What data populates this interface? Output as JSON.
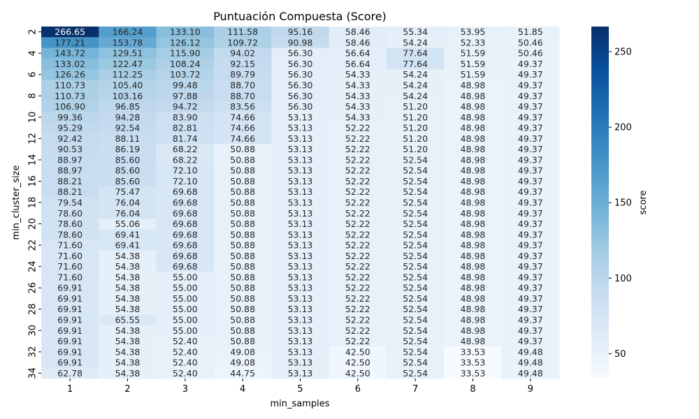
{
  "chart_data": {
    "type": "heatmap",
    "title": "Puntuación Compuesta (Score)",
    "xlabel": "min_samples",
    "ylabel": "min_cluster_size",
    "colorbar_label": "score",
    "x": [
      1,
      2,
      3,
      4,
      5,
      6,
      7,
      8,
      9
    ],
    "y": [
      2,
      3,
      4,
      5,
      6,
      7,
      8,
      9,
      10,
      11,
      12,
      13,
      14,
      15,
      16,
      17,
      18,
      19,
      20,
      21,
      22,
      23,
      24,
      25,
      26,
      27,
      28,
      29,
      30,
      31,
      32,
      33,
      34
    ],
    "y_tick_labels": [
      "2",
      "4",
      "6",
      "8",
      "10",
      "12",
      "14",
      "16",
      "18",
      "20",
      "22",
      "24",
      "26",
      "28",
      "30",
      "32",
      "34"
    ],
    "values": [
      [
        266.65,
        166.24,
        133.1,
        111.58,
        95.16,
        58.46,
        55.34,
        53.95,
        51.85
      ],
      [
        177.21,
        153.78,
        126.12,
        109.72,
        90.98,
        58.46,
        54.24,
        52.33,
        50.46
      ],
      [
        143.72,
        129.51,
        115.9,
        94.02,
        56.3,
        56.64,
        77.64,
        51.59,
        50.46
      ],
      [
        133.02,
        122.47,
        108.24,
        92.15,
        56.3,
        56.64,
        77.64,
        51.59,
        49.37
      ],
      [
        126.26,
        112.25,
        103.72,
        89.79,
        56.3,
        54.33,
        54.24,
        51.59,
        49.37
      ],
      [
        110.73,
        105.4,
        99.48,
        88.7,
        56.3,
        54.33,
        54.24,
        48.98,
        49.37
      ],
      [
        110.73,
        103.16,
        97.88,
        88.7,
        56.3,
        54.33,
        54.24,
        48.98,
        49.37
      ],
      [
        106.9,
        96.85,
        94.72,
        83.56,
        56.3,
        54.33,
        51.2,
        48.98,
        49.37
      ],
      [
        99.36,
        94.28,
        83.9,
        74.66,
        53.13,
        54.33,
        51.2,
        48.98,
        49.37
      ],
      [
        95.29,
        92.54,
        82.81,
        74.66,
        53.13,
        52.22,
        51.2,
        48.98,
        49.37
      ],
      [
        92.42,
        88.11,
        81.74,
        74.66,
        53.13,
        52.22,
        51.2,
        48.98,
        49.37
      ],
      [
        90.53,
        86.19,
        68.22,
        50.88,
        53.13,
        52.22,
        51.2,
        48.98,
        49.37
      ],
      [
        88.97,
        85.6,
        68.22,
        50.88,
        53.13,
        52.22,
        52.54,
        48.98,
        49.37
      ],
      [
        88.97,
        85.6,
        72.1,
        50.88,
        53.13,
        52.22,
        52.54,
        48.98,
        49.37
      ],
      [
        88.21,
        85.6,
        72.1,
        50.88,
        53.13,
        52.22,
        52.54,
        48.98,
        49.37
      ],
      [
        88.21,
        75.47,
        69.68,
        50.88,
        53.13,
        52.22,
        52.54,
        48.98,
        49.37
      ],
      [
        79.54,
        76.04,
        69.68,
        50.88,
        53.13,
        52.22,
        52.54,
        48.98,
        49.37
      ],
      [
        78.6,
        76.04,
        69.68,
        50.88,
        53.13,
        52.22,
        52.54,
        48.98,
        49.37
      ],
      [
        78.6,
        55.06,
        69.68,
        50.88,
        53.13,
        52.22,
        52.54,
        48.98,
        49.37
      ],
      [
        78.6,
        69.41,
        69.68,
        50.88,
        53.13,
        52.22,
        52.54,
        48.98,
        49.37
      ],
      [
        71.6,
        69.41,
        69.68,
        50.88,
        53.13,
        52.22,
        52.54,
        48.98,
        49.37
      ],
      [
        71.6,
        54.38,
        69.68,
        50.88,
        53.13,
        52.22,
        52.54,
        48.98,
        49.37
      ],
      [
        71.6,
        54.38,
        69.68,
        50.88,
        53.13,
        52.22,
        52.54,
        48.98,
        49.37
      ],
      [
        71.6,
        54.38,
        55.0,
        50.88,
        53.13,
        52.22,
        52.54,
        48.98,
        49.37
      ],
      [
        69.91,
        54.38,
        55.0,
        50.88,
        53.13,
        52.22,
        52.54,
        48.98,
        49.37
      ],
      [
        69.91,
        54.38,
        55.0,
        50.88,
        53.13,
        52.22,
        52.54,
        48.98,
        49.37
      ],
      [
        69.91,
        54.38,
        55.0,
        50.88,
        53.13,
        52.22,
        52.54,
        48.98,
        49.37
      ],
      [
        69.91,
        65.55,
        55.0,
        50.88,
        53.13,
        52.22,
        52.54,
        48.98,
        49.37
      ],
      [
        69.91,
        54.38,
        55.0,
        50.88,
        53.13,
        52.22,
        52.54,
        48.98,
        49.37
      ],
      [
        69.91,
        54.38,
        52.4,
        50.88,
        53.13,
        52.22,
        52.54,
        48.98,
        49.37
      ],
      [
        69.91,
        54.38,
        52.4,
        49.08,
        53.13,
        42.5,
        52.54,
        33.53,
        49.48
      ],
      [
        69.91,
        54.38,
        52.4,
        49.08,
        53.13,
        42.5,
        52.54,
        33.53,
        49.48
      ],
      [
        62.78,
        54.38,
        52.4,
        44.75,
        53.13,
        42.5,
        52.54,
        33.53,
        49.48
      ]
    ],
    "colorbar": {
      "range": [
        33.53,
        266.65
      ],
      "ticks": [
        50,
        100,
        150,
        200,
        250
      ],
      "colormap": "Blues"
    },
    "colors": [
      "#f7fbff",
      "#deebf7",
      "#c6dbef",
      "#9ecae1",
      "#6baed6",
      "#4292c6",
      "#2171b5",
      "#08519c",
      "#08306b"
    ]
  }
}
